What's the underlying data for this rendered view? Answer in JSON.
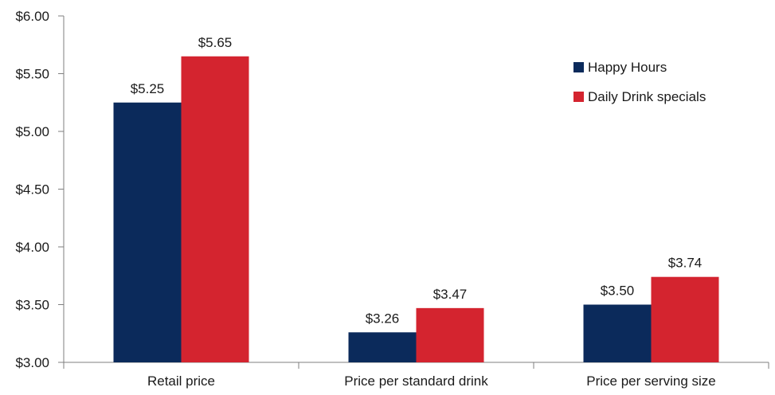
{
  "chart_data": {
    "type": "bar",
    "categories": [
      "Retail price",
      "Price per standard drink",
      "Price per serving size"
    ],
    "series": [
      {
        "name": "Happy Hours",
        "color": "#0b2a5b",
        "values": [
          5.25,
          3.26,
          3.5
        ],
        "labels": [
          "$5.25",
          "$3.26",
          "$3.50"
        ]
      },
      {
        "name": "Daily Drink specials",
        "color": "#d4242f",
        "values": [
          5.65,
          3.47,
          3.74
        ],
        "labels": [
          "$5.65",
          "$3.47",
          "$3.74"
        ]
      }
    ],
    "title": "",
    "xlabel": "",
    "ylabel": "",
    "ylim": [
      3.0,
      6.0
    ],
    "yticks": [
      3.0,
      3.5,
      4.0,
      4.5,
      5.0,
      5.5,
      6.0
    ],
    "ytick_labels": [
      "$3.00",
      "$3.50",
      "$4.00",
      "$4.50",
      "$5.00",
      "$5.50",
      "$6.00"
    ],
    "grid": false,
    "legend_position": "top-right"
  }
}
